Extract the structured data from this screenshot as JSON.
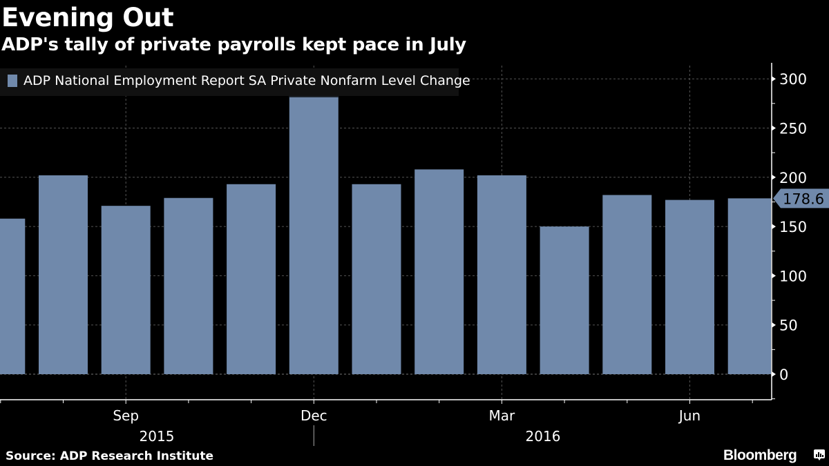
{
  "header": {
    "title": "Evening Out",
    "subtitle": "ADP's tally of private payrolls kept pace in July"
  },
  "footer": {
    "source": "Source: ADP Research Institute",
    "brand": "Bloomberg",
    "brand_icon": "bloomberg-chart-icon"
  },
  "colors": {
    "bar": "#7089AB",
    "background": "#000000",
    "legend_bg": "#111111",
    "text": "#FFFFFF",
    "grid": "#666666"
  },
  "chart_data": {
    "type": "bar",
    "title": "Evening Out",
    "subtitle": "ADP's tally of private payrolls kept pace in July",
    "legend": [
      "ADP National Employment Report SA Private Nonfarm Level Change"
    ],
    "legend_position": "top-left",
    "categories": [
      "Jul 2015",
      "Aug 2015",
      "Sep 2015",
      "Oct 2015",
      "Nov 2015",
      "Dec 2015",
      "Jan 2016",
      "Feb 2016",
      "Mar 2016",
      "Apr 2016",
      "May 2016",
      "Jun 2016",
      "Jul 2016"
    ],
    "series": [
      {
        "name": "ADP National Employment Report SA Private Nonfarm Level Change",
        "values": [
          158,
          202,
          171,
          179,
          193,
          288,
          193,
          208,
          202,
          150,
          182,
          177,
          178.6
        ]
      }
    ],
    "last_value_label": "178.6",
    "x_tick_labels": [
      "Sep",
      "Dec",
      "Mar",
      "Jun"
    ],
    "x_year_labels": [
      "2015",
      "2016"
    ],
    "y_ticks": [
      0,
      50,
      100,
      150,
      200,
      250,
      300
    ],
    "ylim": [
      -25,
      310
    ],
    "y_axis_side": "right",
    "grid": true,
    "xlabel": "",
    "ylabel": ""
  }
}
